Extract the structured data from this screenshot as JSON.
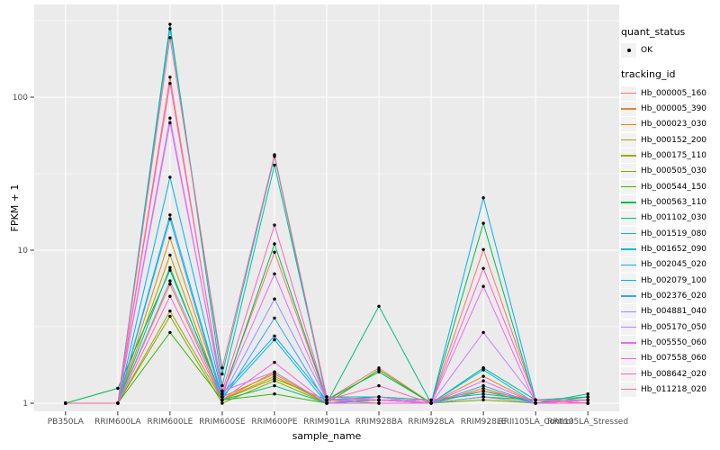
{
  "figure": {
    "background": "#FFFFFF",
    "panel_background": "#EBEBEB",
    "grid_color": "#FFFFFF",
    "tick_color": "#333333",
    "tick_label_color": "#4D4D4D",
    "point_color": "#000000"
  },
  "chart_data": {
    "type": "line",
    "title": "",
    "xlabel": "sample_name",
    "ylabel": "FPKM + 1",
    "y_scale": "log10",
    "grid": true,
    "legend_position": "right",
    "y_ticks": [
      1,
      10,
      100
    ],
    "y_tick_labels": [
      "1",
      "10",
      "100"
    ],
    "ylim_approx": [
      0.88,
      400
    ],
    "point_marker": "black-dot",
    "categories": [
      "PB350LA",
      "RRIM600LA",
      "RRIM600LE",
      "RRIM600SE",
      "RRIM600PE",
      "RRIM901LA",
      "RRIM928BA",
      "RRIM928LA",
      "RRIM928LE",
      "RRII105LA_Control",
      "RRII105LA_Stressed"
    ],
    "series": [
      {
        "name": "Hb_000005_160",
        "color": "#F8766D",
        "values": [
          1,
          1,
          135,
          1.15,
          9.7,
          1.05,
          1.7,
          1,
          10.1,
          1.05,
          1.05
        ]
      },
      {
        "name": "Hb_000005_390",
        "color": "#EA8331",
        "values": [
          1,
          1,
          6,
          1.05,
          1.6,
          1,
          1.05,
          1,
          1.5,
          1,
          1.05
        ]
      },
      {
        "name": "Hb_000023_030",
        "color": "#D89000",
        "values": [
          1,
          1,
          12,
          1.1,
          1.55,
          1,
          1.1,
          1,
          1.7,
          1.05,
          1
        ]
      },
      {
        "name": "Hb_000152_200",
        "color": "#C09B00",
        "values": [
          1,
          1,
          9.3,
          1.05,
          1.5,
          1,
          1.05,
          1,
          1.25,
          1,
          1.05
        ]
      },
      {
        "name": "Hb_000175_110",
        "color": "#A3A500",
        "values": [
          1,
          1,
          4,
          1.05,
          1.45,
          1.05,
          1,
          1,
          1.1,
          1,
          1
        ]
      },
      {
        "name": "Hb_000505_030",
        "color": "#7CAE00",
        "values": [
          1,
          1,
          3.7,
          1,
          1.4,
          1,
          1.05,
          1,
          1.05,
          1,
          1.05
        ]
      },
      {
        "name": "Hb_000544_150",
        "color": "#39B600",
        "values": [
          1,
          1,
          2.9,
          1.05,
          1.15,
          1,
          1.65,
          1,
          1.1,
          1.05,
          1
        ]
      },
      {
        "name": "Hb_000563_110",
        "color": "#00BB4E",
        "values": [
          1,
          1.25,
          7.4,
          1.1,
          11,
          1.05,
          1.6,
          1,
          15,
          1,
          1.1
        ]
      },
      {
        "name": "Hb_001102_030",
        "color": "#00BF7D",
        "values": [
          1,
          1,
          7.7,
          1.05,
          1.3,
          1,
          4.3,
          1,
          1.2,
          1,
          1.15
        ]
      },
      {
        "name": "Hb_001519_080",
        "color": "#00C1A3",
        "values": [
          1,
          1,
          300,
          1.3,
          36,
          1.1,
          1.1,
          1.05,
          1.15,
          1.05,
          1.1
        ]
      },
      {
        "name": "Hb_001652_090",
        "color": "#00BFC4",
        "values": [
          1,
          1,
          280,
          1.55,
          41,
          1.05,
          1.05,
          1,
          1.7,
          1.05,
          1
        ]
      },
      {
        "name": "Hb_002045_020",
        "color": "#00BAE0",
        "values": [
          1,
          1,
          17,
          1.1,
          2.6,
          1,
          1,
          1,
          1.65,
          1,
          1.05
        ]
      },
      {
        "name": "Hb_002079_100",
        "color": "#00B0F6",
        "values": [
          1,
          1,
          30,
          1.15,
          2.75,
          1.05,
          1.1,
          1,
          22,
          1.05,
          1
        ]
      },
      {
        "name": "Hb_002376_020",
        "color": "#35A2FF",
        "values": [
          1,
          1,
          16,
          1.05,
          3.6,
          1,
          1.05,
          1,
          1.3,
          1,
          1
        ]
      },
      {
        "name": "Hb_004881_040",
        "color": "#9590FF",
        "values": [
          1,
          1,
          6.3,
          1.1,
          4.8,
          1.05,
          1.05,
          1,
          1.1,
          1,
          1.05
        ]
      },
      {
        "name": "Hb_005170_050",
        "color": "#C77CFF",
        "values": [
          1,
          1,
          68,
          1.2,
          1.6,
          1,
          1.1,
          1,
          2.9,
          1.05,
          1
        ]
      },
      {
        "name": "Hb_005550_060",
        "color": "#E76BF3",
        "values": [
          1,
          1,
          73,
          1.15,
          7,
          1.05,
          1.05,
          1,
          5.8,
          1,
          1.05
        ]
      },
      {
        "name": "Hb_007558_060",
        "color": "#FA62DB",
        "values": [
          1,
          1,
          5,
          1.05,
          1.85,
          1,
          1,
          1,
          1.4,
          1,
          1
        ]
      },
      {
        "name": "Hb_008642_020",
        "color": "#FF62BC",
        "values": [
          1,
          1,
          123,
          1.2,
          14.6,
          1.05,
          1.3,
          1,
          7.6,
          1.05,
          1.05
        ]
      },
      {
        "name": "Hb_011218_020",
        "color": "#FF6A98",
        "values": [
          1,
          1,
          245,
          1.7,
          42,
          1.1,
          1.05,
          1.05,
          1.2,
          1.05,
          1
        ]
      }
    ],
    "legend": {
      "quant_status_title": "quant_status",
      "quant_status_items": [
        {
          "label": "OK",
          "marker": "black-point"
        }
      ],
      "tracking_id_title": "tracking_id"
    }
  }
}
